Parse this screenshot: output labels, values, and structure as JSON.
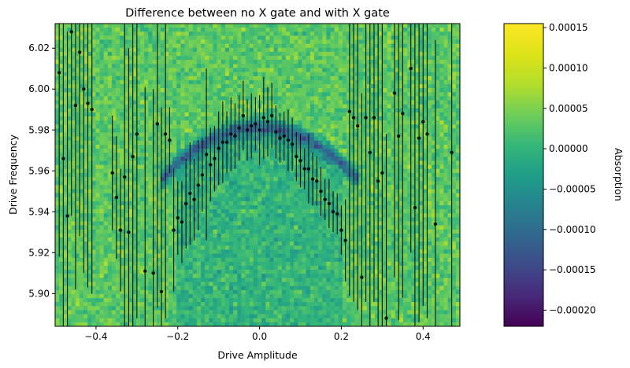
{
  "chart_data": {
    "type": "heatmap",
    "title": "Difference between no X gate and with X gate",
    "xlabel": "Drive Amplitude",
    "ylabel": "Drive Frequency",
    "xlim": [
      -0.5,
      0.49
    ],
    "ylim": [
      5.884,
      6.032
    ],
    "xticks": [
      -0.4,
      -0.2,
      0.0,
      0.2,
      0.4
    ],
    "xtick_labels": [
      "−0.4",
      "−0.2",
      "0.0",
      "0.2",
      "0.4"
    ],
    "yticks": [
      5.9,
      5.92,
      5.94,
      5.96,
      5.98,
      6.0,
      6.02
    ],
    "ytick_labels": [
      "5.90",
      "5.92",
      "5.94",
      "5.96",
      "5.98",
      "6.00",
      "6.02"
    ],
    "grid": {
      "nx": 100,
      "ny": 75
    },
    "background_mean": 3e-05,
    "resonance": {
      "shape": "parabola",
      "peak_amplitude": 0.0,
      "peak_frequency": 5.981,
      "curvature": 1.25,
      "depth": -0.00021,
      "width_frequency": 0.004
    },
    "colorbar": {
      "label": "Absorption",
      "colormap": "viridis",
      "vmin": -0.00022,
      "vmax": 0.000155,
      "ticks": [
        -0.0002,
        -0.00015,
        -0.0001,
        -5e-05,
        0.0,
        5e-05,
        0.0001,
        0.00015
      ],
      "tick_labels": [
        "−0.00020",
        "−0.00015",
        "−0.00010",
        "−0.00005",
        "0.00000",
        "0.00005",
        "0.00010",
        "0.00015"
      ]
    },
    "fit_points": {
      "note_type": "errorbar scatter",
      "x": [
        -0.49,
        -0.48,
        -0.47,
        -0.46,
        -0.45,
        -0.44,
        -0.43,
        -0.42,
        -0.41,
        -0.36,
        -0.35,
        -0.34,
        -0.33,
        -0.32,
        -0.31,
        -0.3,
        -0.28,
        -0.26,
        -0.25,
        -0.24,
        -0.23,
        -0.22,
        -0.21,
        -0.2,
        -0.19,
        -0.18,
        -0.17,
        -0.16,
        -0.15,
        -0.14,
        -0.13,
        -0.12,
        -0.11,
        -0.1,
        -0.09,
        -0.08,
        -0.07,
        -0.06,
        -0.05,
        -0.04,
        -0.03,
        -0.02,
        -0.01,
        0.0,
        0.01,
        0.02,
        0.03,
        0.04,
        0.05,
        0.06,
        0.07,
        0.08,
        0.09,
        0.1,
        0.11,
        0.12,
        0.13,
        0.14,
        0.15,
        0.16,
        0.17,
        0.18,
        0.19,
        0.2,
        0.21,
        0.22,
        0.23,
        0.24,
        0.25,
        0.26,
        0.27,
        0.28,
        0.29,
        0.3,
        0.31,
        0.33,
        0.34,
        0.35,
        0.37,
        0.38,
        0.39,
        0.4,
        0.41,
        0.43,
        0.47
      ],
      "y": [
        6.008,
        5.966,
        5.938,
        6.028,
        5.992,
        6.018,
        6.0,
        5.993,
        5.99,
        5.959,
        5.947,
        5.931,
        5.957,
        5.93,
        5.967,
        5.978,
        5.911,
        5.91,
        5.983,
        5.901,
        5.978,
        5.975,
        5.931,
        5.937,
        5.935,
        5.944,
        5.949,
        5.946,
        5.953,
        5.958,
        5.968,
        5.963,
        5.966,
        5.971,
        5.974,
        5.974,
        5.978,
        5.977,
        5.981,
        5.987,
        5.98,
        5.982,
        5.983,
        5.98,
        5.986,
        5.984,
        5.987,
        5.979,
        5.976,
        5.977,
        5.975,
        5.973,
        5.967,
        5.965,
        5.961,
        5.961,
        5.956,
        5.955,
        5.95,
        5.946,
        5.944,
        5.94,
        5.939,
        5.931,
        5.926,
        5.989,
        5.986,
        5.982,
        5.908,
        5.986,
        5.969,
        5.986,
        5.955,
        5.959,
        5.888,
        5.998,
        5.977,
        5.988,
        6.01,
        5.942,
        5.976,
        5.984,
        5.978,
        5.934,
        5.969
      ],
      "yerr": [
        0.09,
        0.09,
        0.09,
        0.09,
        0.09,
        0.09,
        0.09,
        0.09,
        0.09,
        0.028,
        0.03,
        0.03,
        0.09,
        0.09,
        0.09,
        0.09,
        0.09,
        0.09,
        0.09,
        0.09,
        0.09,
        0.016,
        0.03,
        0.018,
        0.02,
        0.022,
        0.025,
        0.02,
        0.022,
        0.018,
        0.042,
        0.018,
        0.016,
        0.018,
        0.02,
        0.015,
        0.018,
        0.016,
        0.016,
        0.017,
        0.015,
        0.016,
        0.013,
        0.017,
        0.02,
        0.017,
        0.016,
        0.013,
        0.012,
        0.012,
        0.015,
        0.013,
        0.012,
        0.013,
        0.01,
        0.017,
        0.013,
        0.012,
        0.012,
        0.01,
        0.012,
        0.01,
        0.01,
        0.012,
        0.02,
        0.09,
        0.09,
        0.09,
        0.09,
        0.09,
        0.09,
        0.09,
        0.09,
        0.09,
        0.09,
        0.09,
        0.09,
        0.09,
        0.09,
        0.09,
        0.09,
        0.09,
        0.09,
        0.09,
        0.09
      ]
    }
  }
}
